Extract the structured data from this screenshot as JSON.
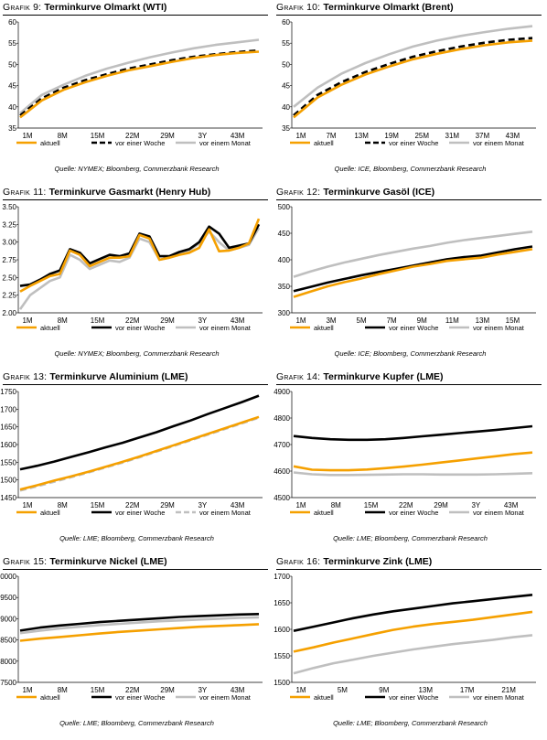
{
  "colors": {
    "aktuell": "#F5A000",
    "woche": "#000000",
    "monat": "#BFBFBF"
  },
  "charts": [
    {
      "grafik_label": "Grafik",
      "number": "9:",
      "title": "Terminkurve Olmarkt (WTI)",
      "source": "Quelle: NYMEX; Bloomberg, Commerzbank Research",
      "chart_data": {
        "type": "line",
        "x_labels": [
          "1M",
          "8M",
          "15M",
          "22M",
          "29M",
          "3Y",
          "43M"
        ],
        "y_ticks": [
          "35",
          "40",
          "45",
          "50",
          "55",
          "60"
        ],
        "ylim": [
          35,
          60
        ],
        "series": [
          {
            "name": "aktuell",
            "style": "solid",
            "color": "#F5A000",
            "values": [
              37.5,
              41.5,
              44,
              45.8,
              47.3,
              48.6,
              49.6,
              50.6,
              51.5,
              52.2,
              52.7,
              53.0
            ]
          },
          {
            "name": "vor einer Woche",
            "style": "dashed",
            "color": "#000000",
            "values": [
              38,
              42,
              44.5,
              46.3,
              47.7,
              49.0,
              50.0,
              51.0,
              51.8,
              52.4,
              52.9,
              53.3
            ]
          },
          {
            "name": "vor einem Monat",
            "style": "solid",
            "color": "#BFBFBF",
            "values": [
              38.5,
              42.8,
              45.2,
              47.3,
              49.0,
              50.4,
              51.7,
              52.8,
              53.8,
              54.6,
              55.2,
              55.8
            ]
          }
        ]
      }
    },
    {
      "grafik_label": "Grafik",
      "number": "10:",
      "title": "Terminkurve Olmarkt (Brent)",
      "source": "Quelle: ICE, Bloomberg, Commerzbank Research",
      "chart_data": {
        "type": "line",
        "x_labels": [
          "1M",
          "7M",
          "13M",
          "19M",
          "25M",
          "31M",
          "37M",
          "43M"
        ],
        "y_ticks": [
          "35",
          "40",
          "45",
          "50",
          "55",
          "60"
        ],
        "ylim": [
          35,
          60
        ],
        "series": [
          {
            "name": "aktuell",
            "style": "solid",
            "color": "#F5A000",
            "values": [
              37.5,
              42.2,
              45.2,
              47.6,
              49.5,
              51.2,
              52.5,
              53.6,
              54.5,
              55.2,
              55.6
            ]
          },
          {
            "name": "vor einer Woche",
            "style": "dashed",
            "color": "#000000",
            "values": [
              38,
              42.8,
              45.8,
              48.2,
              50.1,
              51.8,
              53.1,
              54.2,
              55.1,
              55.8,
              56.2
            ]
          },
          {
            "name": "vor einem Monat",
            "style": "solid",
            "color": "#BFBFBF",
            "values": [
              40,
              44.5,
              47.8,
              50.3,
              52.4,
              54.2,
              55.6,
              56.7,
              57.6,
              58.4,
              59.0
            ]
          }
        ]
      }
    },
    {
      "grafik_label": "Grafik",
      "number": "11:",
      "title": "Terminkurve Gasmarkt (Henry Hub)",
      "source": "Quelle: NYMEX; Bloomberg, Commerzbank Research",
      "chart_data": {
        "type": "line",
        "x_labels": [
          "1M",
          "8M",
          "15M",
          "22M",
          "29M",
          "3Y",
          "43M"
        ],
        "y_ticks": [
          "2.00",
          "2.25",
          "2.50",
          "2.75",
          "3.00",
          "3.25",
          "3.50"
        ],
        "ylim": [
          2.0,
          3.5
        ],
        "series": [
          {
            "name": "aktuell",
            "style": "solid",
            "color": "#F5A000",
            "values": [
              2.3,
              2.38,
              2.45,
              2.52,
              2.55,
              2.88,
              2.82,
              2.66,
              2.72,
              2.78,
              2.78,
              2.8,
              3.1,
              3.05,
              2.75,
              2.78,
              2.82,
              2.85,
              2.92,
              3.18,
              2.87,
              2.88,
              2.92,
              2.98,
              3.33
            ]
          },
          {
            "name": "vor einer Woche",
            "style": "solid",
            "color": "#000000",
            "values": [
              2.38,
              2.4,
              2.47,
              2.55,
              2.6,
              2.9,
              2.85,
              2.7,
              2.76,
              2.82,
              2.8,
              2.84,
              3.12,
              3.08,
              2.8,
              2.8,
              2.86,
              2.9,
              3.0,
              3.22,
              3.12,
              2.92,
              2.95,
              2.98,
              3.25
            ]
          },
          {
            "name": "vor einem Monat",
            "style": "solid",
            "color": "#BFBFBF",
            "values": [
              2.05,
              2.25,
              2.35,
              2.45,
              2.5,
              2.82,
              2.75,
              2.62,
              2.68,
              2.74,
              2.72,
              2.78,
              3.05,
              3.0,
              2.75,
              2.78,
              2.84,
              2.88,
              2.98,
              3.15,
              3.0,
              2.88,
              2.92,
              2.96,
              3.2
            ]
          }
        ]
      }
    },
    {
      "grafik_label": "Grafik",
      "number": "12:",
      "title": "Terminkurve Gasöl (ICE)",
      "source": "Quelle: ICE; Bloomberg, Commerzbank Research",
      "chart_data": {
        "type": "line",
        "x_labels": [
          "1M",
          "3M",
          "5M",
          "7M",
          "9M",
          "11M",
          "13M",
          "15M"
        ],
        "y_ticks": [
          "300",
          "350",
          "400",
          "450",
          "500"
        ],
        "ylim": [
          300,
          500
        ],
        "series": [
          {
            "name": "aktuell",
            "style": "solid",
            "color": "#F5A000",
            "values": [
              330,
              340,
              350,
              358,
              365,
              373,
              380,
              387,
              392,
              398,
              401,
              404,
              410,
              415,
              420
            ]
          },
          {
            "name": "vor einer Woche",
            "style": "solid",
            "color": "#000000",
            "values": [
              341,
              349,
              357,
              364,
              371,
              377,
              383,
              389,
              395,
              401,
              405,
              408,
              414,
              420,
              425
            ]
          },
          {
            "name": "vor einem Monat",
            "style": "solid",
            "color": "#BFBFBF",
            "values": [
              368,
              378,
              387,
              395,
              402,
              409,
              415,
              421,
              426,
              432,
              437,
              441,
              445,
              449,
              453
            ]
          }
        ]
      }
    },
    {
      "grafik_label": "Grafik",
      "number": "13:",
      "title": "Terminkurve Aluminium (LME)",
      "source": "Quelle: LME; Bloomberg, Commerzbank Research",
      "chart_data": {
        "type": "line",
        "x_labels": [
          "1M",
          "8M",
          "15M",
          "22M",
          "29M",
          "3Y",
          "43M"
        ],
        "y_ticks": [
          "1450",
          "1500",
          "1550",
          "1600",
          "1650",
          "1700",
          "1750"
        ],
        "ylim": [
          1450,
          1750
        ],
        "series": [
          {
            "name": "aktuell",
            "style": "solid",
            "color": "#F5A000",
            "values": [
              1473,
              1485,
              1498,
              1510,
              1523,
              1537,
              1551,
              1566,
              1582,
              1598,
              1614,
              1630,
              1646,
              1662,
              1678
            ]
          },
          {
            "name": "vor einer Woche",
            "style": "solid",
            "color": "#000000",
            "values": [
              1530,
              1540,
              1552,
              1565,
              1578,
              1592,
              1605,
              1620,
              1635,
              1652,
              1668,
              1686,
              1703,
              1720,
              1738
            ]
          },
          {
            "name": "vor einem Monat",
            "style": "dashed",
            "color": "#BFBFBF",
            "values": [
              1470,
              1482,
              1495,
              1508,
              1521,
              1535,
              1549,
              1564,
              1580,
              1596,
              1612,
              1628,
              1644,
              1660,
              1676
            ]
          }
        ]
      }
    },
    {
      "grafik_label": "Grafik",
      "number": "14:",
      "title": "Terminkurve Kupfer (LME)",
      "source": "Quelle: LME; Bloomberg, Commerzbank Research",
      "chart_data": {
        "type": "line",
        "x_labels": [
          "1M",
          "8M",
          "15M",
          "22M",
          "29M",
          "3Y",
          "43M"
        ],
        "y_ticks": [
          "4500",
          "4600",
          "4700",
          "4800",
          "4900"
        ],
        "ylim": [
          4500,
          4900
        ],
        "series": [
          {
            "name": "aktuell",
            "style": "solid",
            "color": "#F5A000",
            "values": [
              4618,
              4605,
              4603,
              4603,
              4606,
              4611,
              4617,
              4624,
              4632,
              4640,
              4648,
              4656,
              4664,
              4670
            ]
          },
          {
            "name": "vor einer Woche",
            "style": "solid",
            "color": "#000000",
            "values": [
              4732,
              4725,
              4720,
              4718,
              4718,
              4720,
              4725,
              4731,
              4737,
              4743,
              4749,
              4755,
              4762,
              4769
            ]
          },
          {
            "name": "vor einem Monat",
            "style": "solid",
            "color": "#BFBFBF",
            "values": [
              4595,
              4588,
              4585,
              4585,
              4586,
              4587,
              4588,
              4588,
              4587,
              4587,
              4587,
              4588,
              4590,
              4592
            ]
          }
        ]
      }
    },
    {
      "grafik_label": "Grafik",
      "number": "15:",
      "title": "Terminkurve Nickel (LME)",
      "source": "Quelle: LME; Bloomberg, Commerzbank Research",
      "chart_data": {
        "type": "line",
        "x_labels": [
          "1M",
          "8M",
          "15M",
          "22M",
          "29M",
          "3Y",
          "43M"
        ],
        "y_ticks": [
          "7500",
          "8000",
          "8500",
          "9000",
          "9500",
          "10000"
        ],
        "ylim": [
          7500,
          10000
        ],
        "series": [
          {
            "name": "aktuell",
            "style": "solid",
            "color": "#F5A000",
            "values": [
              8480,
              8530,
              8570,
              8610,
              8650,
              8690,
              8720,
              8750,
              8780,
              8810,
              8830,
              8850,
              8870
            ]
          },
          {
            "name": "vor einer Woche",
            "style": "solid",
            "color": "#000000",
            "values": [
              8720,
              8790,
              8840,
              8880,
              8920,
              8950,
              8980,
              9010,
              9040,
              9060,
              9080,
              9100,
              9110
            ]
          },
          {
            "name": "vor einem Monat",
            "style": "solid",
            "color": "#BFBFBF",
            "values": [
              8660,
              8720,
              8770,
              8810,
              8850,
              8880,
              8910,
              8940,
              8960,
              8980,
              9000,
              9020,
              9030
            ]
          }
        ]
      }
    },
    {
      "grafik_label": "Grafik",
      "number": "16:",
      "title": "Terminkurve Zink (LME)",
      "source": "Quelle: LME; Bloomberg, Commerzbank Research",
      "chart_data": {
        "type": "line",
        "x_labels": [
          "1M",
          "5M",
          "9M",
          "13M",
          "17M",
          "21M"
        ],
        "y_ticks": [
          "1500",
          "1550",
          "1600",
          "1650",
          "1700"
        ],
        "ylim": [
          1500,
          1700
        ],
        "series": [
          {
            "name": "aktuell",
            "style": "solid",
            "color": "#F5A000",
            "values": [
              1558,
              1566,
              1575,
              1583,
              1591,
              1599,
              1605,
              1610,
              1614,
              1618,
              1623,
              1628,
              1633
            ]
          },
          {
            "name": "vor einer Woche",
            "style": "solid",
            "color": "#000000",
            "values": [
              1597,
              1605,
              1613,
              1621,
              1628,
              1634,
              1639,
              1644,
              1649,
              1653,
              1657,
              1661,
              1665
            ]
          },
          {
            "name": "vor einem Monat",
            "style": "solid",
            "color": "#BFBFBF",
            "values": [
              1517,
              1527,
              1536,
              1543,
              1550,
              1556,
              1562,
              1567,
              1572,
              1576,
              1580,
              1585,
              1589
            ]
          }
        ]
      }
    }
  ],
  "legend_labels": {
    "aktuell": "aktuell",
    "woche": "vor einer Woche",
    "monat": "vor einem Monat"
  }
}
